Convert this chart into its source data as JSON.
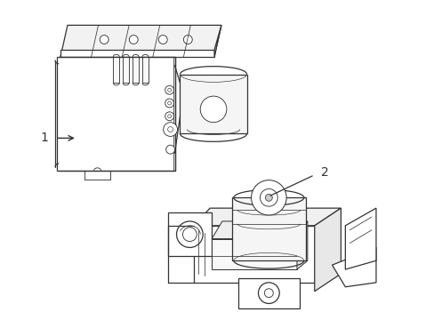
{
  "bg_color": "#ffffff",
  "line_color": "#333333",
  "lw": 0.9,
  "figsize": [
    4.89,
    3.6
  ],
  "dpi": 100,
  "label1": "1",
  "label2": "2"
}
